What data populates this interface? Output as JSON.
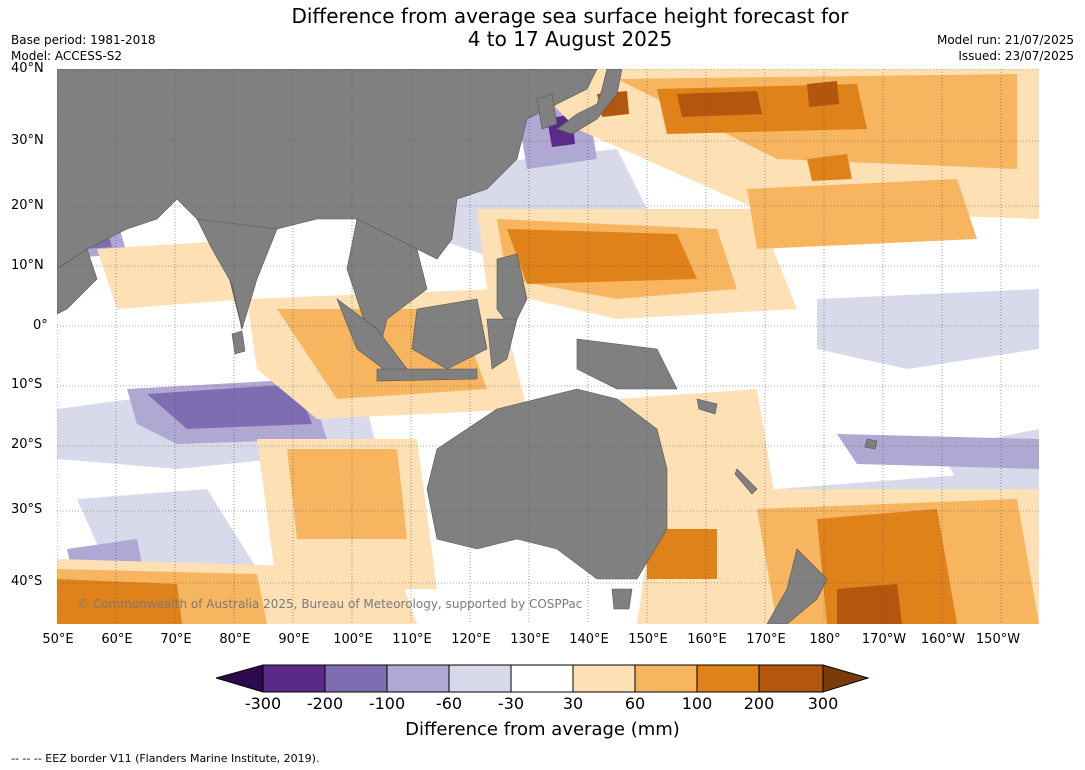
{
  "title_line1": "Difference from average sea surface height forecast for",
  "title_line2": "4 to 17 August 2025",
  "base_period": "Base period: 1981-2018",
  "model": "Model: ACCESS-S2",
  "model_run": "Model run: 21/07/2025",
  "issued": "Issued: 23/07/2025",
  "lat_labels": [
    "40°N",
    "30°N",
    "20°N",
    "10°N",
    "0°",
    "10°S",
    "20°S",
    "30°S",
    "40°S"
  ],
  "lon_labels": [
    "50°E",
    "60°E",
    "70°E",
    "80°E",
    "90°E",
    "100°E",
    "110°E",
    "120°E",
    "130°E",
    "140°E",
    "150°E",
    "160°E",
    "170°E",
    "180°",
    "170°W",
    "160°W",
    "150°W"
  ],
  "copyright": "© Commonwealth of Australia 2025, Bureau of Meteorology, supported by COSPPac",
  "colorbar": {
    "ticks": [
      "-300",
      "-200",
      "-100",
      "-60",
      "-30",
      "30",
      "60",
      "100",
      "200",
      "300"
    ],
    "colors": [
      "#2d0a4e",
      "#5a2a8a",
      "#7e6db0",
      "#aea8d2",
      "#d9d9ec",
      "#ffffff",
      "#fde0b4",
      "#f8b560",
      "#e0821a",
      "#b3560e",
      "#7a3a0a"
    ],
    "title": "Difference from average (mm)"
  },
  "footnote": "--  --  -- EEZ border V11 (Flanders Marine Institute, 2019).",
  "map_colors": {
    "land": "#808080",
    "ocean": "#ffffff",
    "grid": "#555555"
  }
}
